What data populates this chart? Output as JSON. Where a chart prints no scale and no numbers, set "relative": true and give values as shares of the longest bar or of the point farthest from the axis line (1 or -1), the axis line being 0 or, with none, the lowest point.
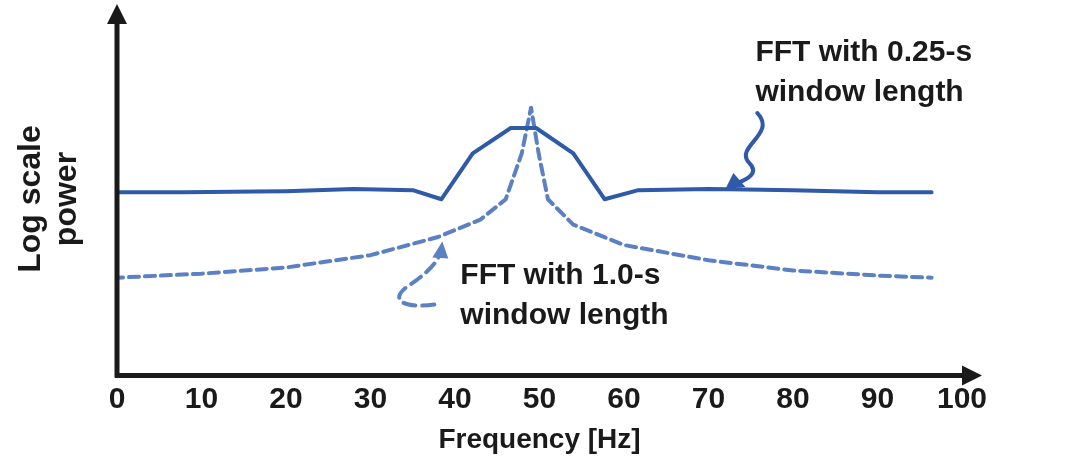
{
  "chart_data": {
    "type": "line",
    "xlabel": "Frequency [Hz]",
    "ylabel": "Log scale power",
    "relative": true,
    "marker": "none",
    "xlim": [
      0,
      100
    ],
    "xticks": [
      0,
      10,
      20,
      30,
      40,
      50,
      60,
      70,
      80,
      90,
      100
    ],
    "series": [
      {
        "color": "#2e5aa8",
        "line_style": "solid",
        "x": [
          0,
          8,
          20,
          28,
          35,
          38.4,
          42.1,
          46.6,
          49.6,
          54,
          57.7,
          61.7,
          70,
          80,
          90,
          96.4
        ],
        "values": [
          0.684,
          0.684,
          0.688,
          0.696,
          0.692,
          0.658,
          0.829,
          0.924,
          0.924,
          0.829,
          0.658,
          0.692,
          0.696,
          0.692,
          0.684,
          0.684
        ]
      },
      {
        "color": "#5b80c4",
        "line_style": "dashed",
        "x": [
          0,
          10,
          20,
          30,
          38,
          43,
          46,
          47.9,
          49,
          49.9,
          51,
          54,
          60,
          70,
          80,
          90,
          96.4
        ],
        "values": [
          0.365,
          0.38,
          0.403,
          0.449,
          0.517,
          0.582,
          0.658,
          0.829,
          1,
          0.829,
          0.658,
          0.563,
          0.487,
          0.43,
          0.392,
          0.373,
          0.365
        ]
      }
    ],
    "annotations": [
      {
        "text": "FFT with 0.25-s window length",
        "x": 72,
        "y": 0.696
      },
      {
        "text": "FFT with 1.0-s window length",
        "x": 38.5,
        "y": 0.5
      }
    ]
  }
}
